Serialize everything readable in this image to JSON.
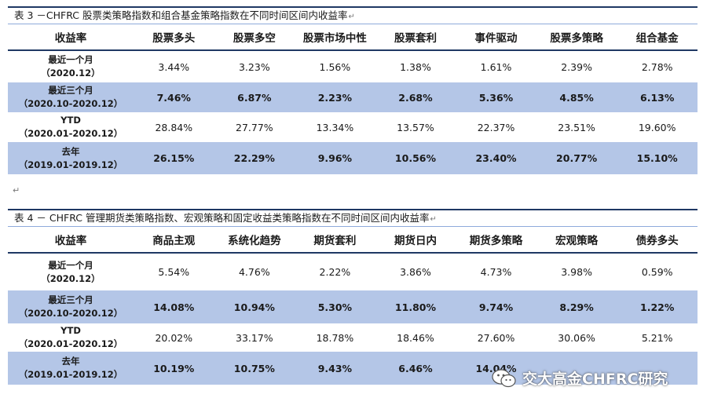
{
  "table3": {
    "caption": "表 3 －CHFRC 股票类策略指数和组合基金策略指数在不同时间区间内收益率",
    "headers": [
      "收益率",
      "股票多头",
      "股票多空",
      "股票市场中性",
      "股票套利",
      "事件驱动",
      "股票多策略",
      "组合基金"
    ],
    "rows": [
      {
        "label1": "最近一个月",
        "label2": "（2020.12）",
        "shaded": false,
        "values": [
          "3.44%",
          "3.23%",
          "1.56%",
          "1.38%",
          "1.61%",
          "2.39%",
          "2.78%"
        ]
      },
      {
        "label1": "最近三个月",
        "label2": "（2020.10-2020.12）",
        "shaded": true,
        "values": [
          "7.46%",
          "6.87%",
          "2.23%",
          "2.68%",
          "5.36%",
          "4.85%",
          "6.13%"
        ]
      },
      {
        "label1": "YTD",
        "label2": "（2020.01-2020.12）",
        "shaded": false,
        "values": [
          "28.84%",
          "27.77%",
          "13.34%",
          "13.57%",
          "22.37%",
          "23.51%",
          "19.60%"
        ]
      },
      {
        "label1": "去年",
        "label2": "（2019.01-2019.12）",
        "shaded": true,
        "values": [
          "26.15%",
          "22.29%",
          "9.96%",
          "10.56%",
          "23.40%",
          "20.77%",
          "15.10%"
        ]
      }
    ]
  },
  "table4": {
    "caption": "表 4 － CHFRC 管理期货类策略指数、宏观策略和固定收益类策略指数在不同时间区间内收益率",
    "headers": [
      "收益率",
      "商品主观",
      "系统化趋势",
      "期货套利",
      "期货日内",
      "期货多策略",
      "宏观策略",
      "债券多头"
    ],
    "rows": [
      {
        "label1": "最近一个月",
        "label2": "（2020.12）",
        "shaded": false,
        "values": [
          "5.54%",
          "4.76%",
          "2.22%",
          "3.86%",
          "4.73%",
          "3.98%",
          "0.59%"
        ]
      },
      {
        "label1": "最近三个月",
        "label2": "（2020.10-2020.12）",
        "shaded": true,
        "values": [
          "14.08%",
          "10.94%",
          "5.30%",
          "11.80%",
          "9.74%",
          "8.29%",
          "1.22%"
        ]
      },
      {
        "label1": "YTD",
        "label2": "（2020.01-2020.12）",
        "shaded": false,
        "values": [
          "20.02%",
          "33.17%",
          "18.78%",
          "18.46%",
          "27.60%",
          "30.06%",
          "5.21%"
        ]
      },
      {
        "label1": "去年",
        "label2": "（2019.01-2019.12）",
        "shaded": true,
        "values": [
          "10.19%",
          "10.75%",
          "9.43%",
          "6.46%",
          "14.04%",
          "",
          ""
        ]
      }
    ]
  },
  "mark": "↵",
  "watermark": {
    "text": "交大高金CHFRC研究",
    "icon": "wechat-icon"
  }
}
